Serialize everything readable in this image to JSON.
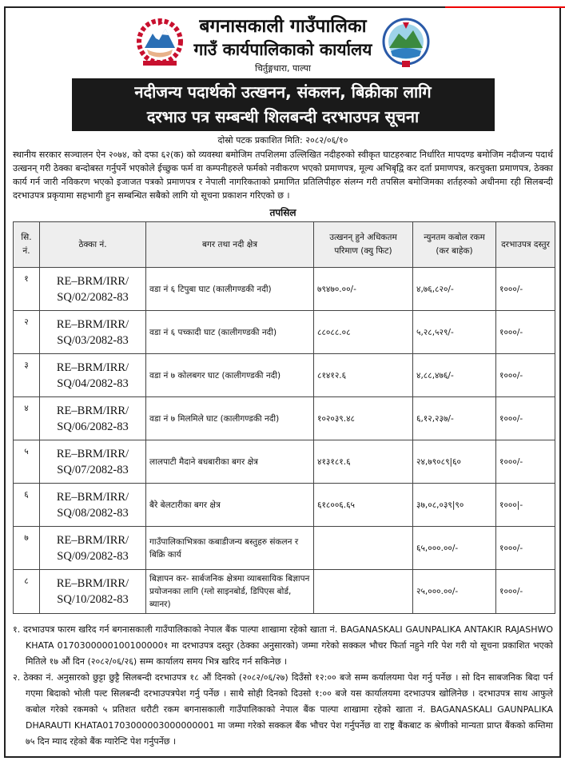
{
  "header": {
    "municipality": "बगनासकाली गाउँपालिका",
    "office": "गाउँ कार्यपालिकाको कार्यालय",
    "location": "चिर्तुङ्गधारा, पाल्पा",
    "title_line1": "नदीजन्य पदार्थको उत्खनन, संकलन, बिक्रीका लागि",
    "title_line2": "दरभाउ पत्र सम्बन्धी शिलबन्दी दरभाउपत्र सूचना",
    "publish_date": "दोस्रो पटक प्रकाशित मिति: २०८२/०६/१०"
  },
  "intro": "स्थानीय सरकार सञ्चालन ऐन २०७४, को दफा ६२(क) को व्यवस्था बमोजिम तपशिलमा उल्लिखित नदीहरुको स्वीकृत घाटहरुबाट निर्धारित मापदण्ड बमोजिम नदीजन्य पदार्थ उत्खनन् गरी ठेक्का बन्दोबस्त गर्नुपर्ने भएकोले ईच्छुक फर्म वा कम्पनीहरुले फर्मको नवीकरण भएको प्रमाणपत्र, मूल्य अभिबृद्वि कर दर्ता प्रमाणपत्र, करचुक्ता प्रमाणपत्र, ठेक्का कार्य गर्न जारी नविकरण भएको इजाजत पत्रको प्रमाणपत्र र नेपाली नागरिकताको प्रमाणित प्रतिलिपीहरु संलग्न गरी तपसिल बमोजिमका शर्तहरुको अधीनमा रही सिलबन्दी दरभाउपत्र प्रकृयामा सहभागी हुन सम्बन्धित सबैको लागि यो सूचना प्रकाशन गरिएको छ ।",
  "table": {
    "caption": "तपसिल",
    "headers": [
      "सि. नं.",
      "ठेक्का नं.",
      "बगर तथा नदी क्षेत्र",
      "उत्खनन् हुने अधिकतम परिमाण (क्यु फिट)",
      "न्युनतम कबोल रकम (कर बाहेक)",
      "दरभाउपत्र दस्तुर"
    ],
    "rows": [
      {
        "sn": "१",
        "contract_a": "RE–BRM/IRR/",
        "contract_b": "SQ/02/2082-83",
        "area": "वडा नं ६ टिपुबा घाट (कालीगण्डकी नदी)",
        "quantity": "७९४७०.००/-",
        "amount": "४,७६,८२०/-",
        "fee": "१०००/-"
      },
      {
        "sn": "२",
        "contract_a": "RE–BRM/IRR/",
        "contract_b": "SQ/03/2082-83",
        "area": "वडा नं ६ पच्कादी घाट (कालीगण्डकी नदी)",
        "quantity": "८८०८८.०८",
        "amount": "५,२८,५२९/-",
        "fee": "१०००/-"
      },
      {
        "sn": "३",
        "contract_a": "RE–BRM/IRR/",
        "contract_b": "SQ/04/2082-83",
        "area": "वडा नं ७ कोलबगर घाट (कालीगण्डकी नदी)",
        "quantity": "८१४१२.६",
        "amount": "४,८८,४७६/-",
        "fee": "१०००/-"
      },
      {
        "sn": "४",
        "contract_a": "RE–BRM/IRR/",
        "contract_b": "SQ/06/2082-83",
        "area": "वडा नं ७ मिलमिले घाट (कालीगण्डकी नदी)",
        "quantity": "१०२०३९.४८",
        "amount": "६,१२,२३७/-",
        "fee": "१०००/-"
      },
      {
        "sn": "५",
        "contract_a": "RE–BRM/IRR/",
        "contract_b": "SQ/07/2082-83",
        "area": "लालपाटी मैदाने बधबारीका बगर क्षेत्र",
        "quantity": "४१३१८१.६",
        "amount": "२४,७९०८९|६०",
        "fee": "१०००/-"
      },
      {
        "sn": "६",
        "contract_a": "RE–BRM/IRR/",
        "contract_b": "SQ/08/2082-83",
        "area": "बैरे बेलटारीका बगर क्षेत्र",
        "quantity": "६१८००६.६५",
        "amount": "३७,०८,०३९|९०",
        "fee": "१०००|-"
      },
      {
        "sn": "७",
        "contract_a": "RE–BRM/IRR/",
        "contract_b": "SQ/09/2082-83",
        "area": "गाउँपालिकाभित्रका कबाडीजन्य बस्तुहरु संकलन र बिक्रि कार्य",
        "quantity": "",
        "amount": "६५,०००.००/-",
        "fee": "१०००/-"
      },
      {
        "sn": "८",
        "contract_a": "RE–BRM/IRR/",
        "contract_b": "SQ/10/2082-83",
        "area": "बिज्ञापन कर- सार्बजनिक क्षेत्रमा व्याबसायिक बिज्ञापन प्रयोजनका लागि (ग्लो साइनबोर्ड, डिपिएस बोर्ड, ब्यानर)",
        "quantity": "",
        "amount": "२५,०००.००/-",
        "fee": "१०००/-"
      }
    ]
  },
  "notes": [
    "१. दरभाउपत्र फारम खरिद गर्न बगनासकाली गाउँपालिकाको नेपाल बैंक पाल्पा शाखामा रहेको खाता नं. BAGANASKALI GAUNPALIKA ANTAKIR RAJASHWO KHATA 0170300000100100000१ मा दरभाउपत्र दस्तुर (ठेक्का अनुसारको) जम्मा गरेको सक्कल भौचर फिर्ता नहुने गरि पेश गरी यो सूचना प्रकाशित भएको मितिले १७ औं दिन (२०८२/०६/२६) सम्म कार्यालय समय भित्र खरिद गर्न सकिनेछ ।",
    "२. ठेक्का नं. अनुसारको छुट्टा छुट्टै सिलबन्दी दरभाउपत्र १८ औं दिनको (२०८२/०६/२७) दिउँसो १२:०० बजे सम्म कर्यालयमा पेश गर्नु पर्नेछ । सो दिन साबजनिक बिदा पर्न गएमा बिदाको भोली पल्ट सिलबन्दी दरभाउपत्रपेश गर्नु पर्नेछ । साथै सोही दिनको दिउसो १:०० बजे यस कार्यालयमा दरभाउपत्र खोलिनेछ । दरभाउपत्र साथ आफुले कबोल गरेको रकमको ५ प्रतिशत धरौटी रकम बगनासकाली गाउँपालिकाको नेपाल बैंक पाल्पा शाखामा रहेको खाता नं. BAGANASKALI GAUNPALIKA DHARAUTI KHATA01703000003000000001 मा जम्मा गरेको सक्कल बैंक भौचर पेश गर्नुपर्नेछ वा राष्ट्र बैंकबाट क श्रेणीको मान्यता प्राप्त बैंकको कम्तिमा ७५ दिन म्याद रहेको बैंक ग्यारेन्टि पेश गर्नुपर्नेछ ।"
  ],
  "colors": {
    "title_bg": "#1a1a1a",
    "header_bg": "#eeeeee",
    "border": "#444444"
  }
}
